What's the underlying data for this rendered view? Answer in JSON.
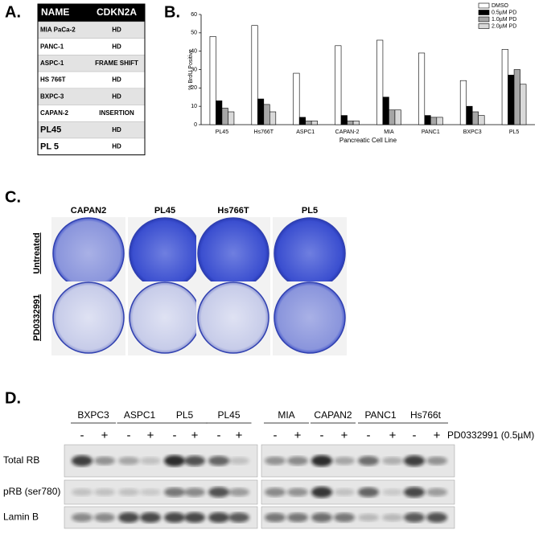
{
  "panel_a": {
    "label": "A.",
    "header": [
      "NAME",
      "CDKN2A"
    ],
    "rows": [
      [
        "MIA PaCa-2",
        "HD"
      ],
      [
        "PANC-1",
        "HD"
      ],
      [
        "ASPC-1",
        "FRAME SHIFT"
      ],
      [
        "HS 766T",
        "HD"
      ],
      [
        "BXPC-3",
        "HD"
      ],
      [
        "CAPAN-2",
        "INSERTION"
      ],
      [
        "PL45",
        "HD"
      ],
      [
        "PL 5",
        "HD"
      ]
    ]
  },
  "chart_data": {
    "type": "bar",
    "label": "B.",
    "x_label": "Pancreatic Cell Line",
    "y_label": "% BrdU Positive",
    "categories": [
      "PL45",
      "Hs766T",
      "ASPC1",
      "CAPAN-2",
      "MIA",
      "PANC1",
      "BXPC3",
      "PL5"
    ],
    "series": [
      {
        "name": "DMSO",
        "color": "#ffffff",
        "values": [
          48,
          54,
          28,
          43,
          46,
          39,
          24,
          41
        ]
      },
      {
        "name": "0.5µM PD",
        "color": "#000000",
        "values": [
          13,
          14,
          4,
          5,
          15,
          5,
          10,
          27
        ]
      },
      {
        "name": "1.0µM PD",
        "color": "#a6a6a6",
        "values": [
          9,
          11,
          2,
          2,
          8,
          4,
          7,
          30
        ]
      },
      {
        "name": "2.0µM PD",
        "color": "#d9d9d9",
        "values": [
          7,
          7,
          2,
          2,
          8,
          4,
          5,
          22
        ]
      }
    ],
    "ylim": [
      0,
      60
    ],
    "yticks": [
      0,
      10,
      20,
      30,
      40,
      50,
      60
    ],
    "legend": "top-right"
  },
  "panel_c": {
    "label": "C.",
    "columns": [
      "CAPAN2",
      "PL45",
      "Hs766T",
      "PL5"
    ],
    "rows": [
      "Untreated",
      "PD0332991"
    ]
  },
  "panel_d": {
    "label": "D.",
    "cell_lines": [
      "BXPC3",
      "ASPC1",
      "PL5",
      "PL45",
      "MIA",
      "CAPAN2",
      "PANC1",
      "Hs766t"
    ],
    "signs": [
      "-",
      "+"
    ],
    "treatment": "PD0332991 (0.5µM)",
    "rows": [
      "Total RB",
      "pRB (ser780)",
      "Lamin B"
    ]
  }
}
